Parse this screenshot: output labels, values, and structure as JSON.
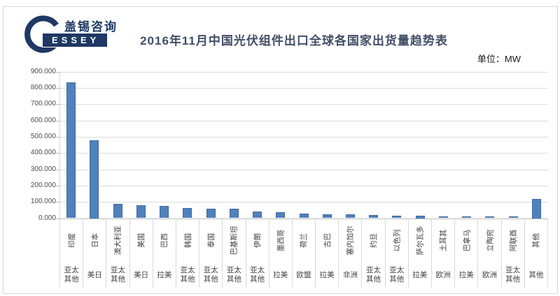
{
  "logo": {
    "chinese_name": "盖锡咨询",
    "english_name": "ESSEY"
  },
  "header": {
    "title": "2016年11月中国光伏组件出口全球各国家出货量趋势表",
    "unit_label": "单位：MW"
  },
  "colors": {
    "bar": "#4f81bd",
    "bar_border": "#41699c",
    "gridline": "#dcdcdc",
    "axis": "#b9b9b9",
    "title": "#414e68",
    "logo_navy": "#1f3864"
  },
  "chart_data": {
    "type": "bar",
    "title": "2016年11月中国光伏组件出口全球各国家出货量趋势表",
    "unit": "MW",
    "categories": [
      "印度",
      "日本",
      "澳大利亚",
      "美国",
      "巴西",
      "韩国",
      "泰国",
      "巴基斯坦",
      "伊朗",
      "墨西哥",
      "荷兰",
      "古巴",
      "塞内加尔",
      "约旦",
      "以色列",
      "萨尔瓦多",
      "土耳其",
      "巴拿马",
      "立陶宛",
      "阿联酋",
      "其他"
    ],
    "region_labels": [
      "亚太其他",
      "美日",
      "亚太其他",
      "美日",
      "拉美",
      "亚太其他",
      "亚太其他",
      "亚太其他",
      "亚太其他",
      "拉美",
      "欧盟",
      "拉美",
      "非洲",
      "亚太其他",
      "亚太其他",
      "拉美",
      "欧洲",
      "拉美",
      "欧洲",
      "亚太其他",
      "其他"
    ],
    "values": [
      833,
      480,
      88,
      78,
      76,
      64,
      59,
      58,
      42,
      37,
      29,
      25,
      23,
      21,
      17,
      15,
      12,
      11,
      10,
      12,
      120
    ],
    "ylabel": "",
    "xlabel": "",
    "ylim": [
      0,
      900
    ],
    "ytick_step": 100,
    "ytick_labels": [
      "0.000",
      "100.000",
      "200.000",
      "300.000",
      "400.000",
      "500.000",
      "600.000",
      "700.000",
      "800.000",
      "900.000"
    ],
    "grid": true,
    "legend": false
  }
}
